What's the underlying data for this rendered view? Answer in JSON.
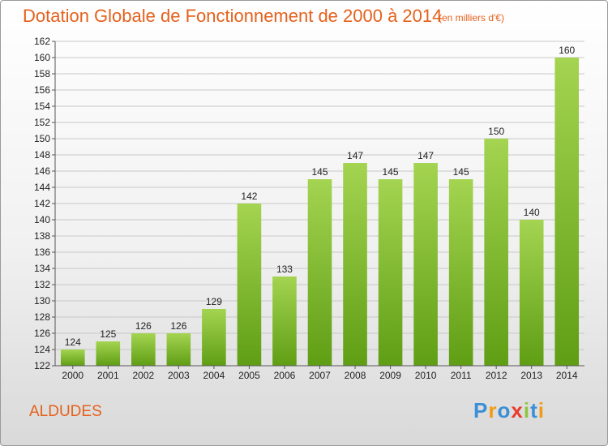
{
  "title": "Dotation Globale de Fonctionnement de 2000 à 2014",
  "unit_note": "(en milliers d'€)",
  "place_name": "ALDUDES",
  "logo": {
    "letters": [
      "P",
      "r",
      "o",
      "x",
      "i",
      "t",
      "i"
    ],
    "colors": [
      "#3a8fd6",
      "#f29a14",
      "#3a8fd6",
      "#e83b2b",
      "#8dc63f",
      "#3a8fd6",
      "#f29a14"
    ]
  },
  "chart_data": {
    "type": "bar",
    "categories": [
      "2000",
      "2001",
      "2002",
      "2003",
      "2004",
      "2005",
      "2006",
      "2007",
      "2008",
      "2009",
      "2010",
      "2011",
      "2012",
      "2013",
      "2014"
    ],
    "values": [
      124,
      125,
      126,
      126,
      129,
      142,
      133,
      145,
      147,
      145,
      147,
      145,
      150,
      140,
      160
    ],
    "value_labels": [
      "124",
      "125",
      "126",
      "126",
      "129",
      "142",
      "133",
      "145",
      "147",
      "145",
      "147",
      "145",
      "150",
      "140",
      "160"
    ],
    "ylim": [
      122,
      162
    ],
    "y_ticks": [
      122,
      124,
      126,
      128,
      130,
      132,
      134,
      136,
      138,
      140,
      142,
      144,
      146,
      148,
      150,
      152,
      154,
      156,
      158,
      160,
      162
    ],
    "y_tick_labels": [
      "122",
      "124",
      "126",
      "128",
      "130",
      "132",
      "134",
      "136",
      "138",
      "140",
      "142",
      "144",
      "146",
      "148",
      "150",
      "152",
      "154",
      "156",
      "158",
      "160",
      "162"
    ],
    "grid": true,
    "colors": {
      "bar_top": "#a4d451",
      "bar_bottom": "#5f9e14",
      "grid": "#c8c8c8",
      "axis": "#555555",
      "text": "#222222"
    }
  }
}
